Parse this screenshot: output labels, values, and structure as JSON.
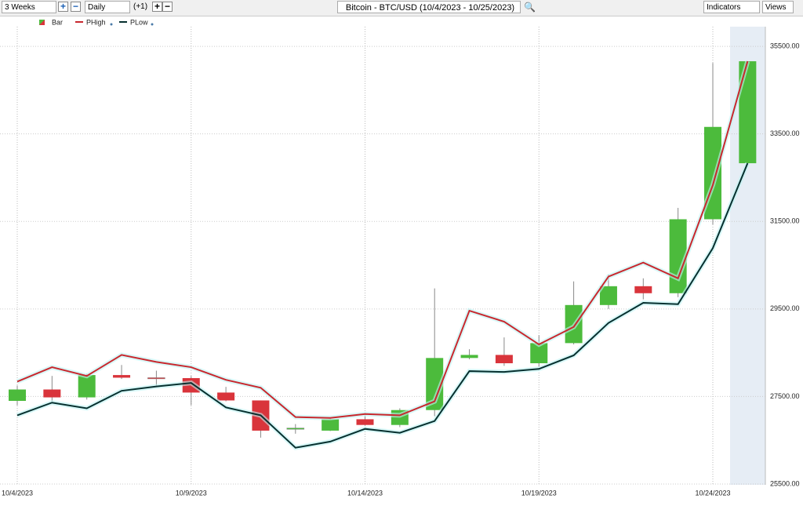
{
  "toolbar": {
    "period": "3 Weeks",
    "interval": "Daily",
    "offset": "(+1)",
    "symbol": "Bitcoin - BTC/USD (10/4/2023 - 10/25/2023)",
    "indicators": "Indicators",
    "views": "Views"
  },
  "chart_data": {
    "type": "candlestick",
    "categories": [
      "10/4/2023",
      null,
      null,
      null,
      null,
      "10/9/2023",
      null,
      null,
      null,
      null,
      "10/14/2023",
      null,
      null,
      null,
      null,
      "10/19/2023",
      null,
      null,
      null,
      null,
      "10/24/2023",
      null
    ],
    "candles": {
      "name": "Bar",
      "up_color": "#4cbb3c",
      "down_color": "#d9343b",
      "open": [
        27400,
        27660,
        27480,
        27990,
        27930,
        27920,
        27590,
        27410,
        26750,
        26720,
        26980,
        26850,
        27190,
        28380,
        28450,
        28260,
        28720,
        29590,
        30020,
        29860,
        31550,
        32830
      ],
      "high": [
        27750,
        27970,
        28020,
        28220,
        28090,
        27970,
        27720,
        27410,
        26870,
        27010,
        27050,
        27230,
        29970,
        28580,
        28850,
        28900,
        30130,
        30290,
        30200,
        31810,
        35120,
        35160
      ],
      "low": [
        27300,
        27390,
        27430,
        27900,
        27750,
        27300,
        27390,
        26560,
        26650,
        26710,
        26830,
        26800,
        27050,
        28350,
        28200,
        28180,
        28690,
        29500,
        29720,
        29770,
        31430,
        32830
      ],
      "close": [
        27660,
        27480,
        27990,
        27930,
        27920,
        27590,
        27410,
        26720,
        26780,
        26980,
        26850,
        27190,
        28380,
        28450,
        28260,
        28720,
        29590,
        30020,
        29860,
        31550,
        33660,
        35160
      ]
    },
    "series": [
      {
        "name": "PHigh",
        "color": "#c8282e",
        "values": [
          27840,
          28170,
          27970,
          28450,
          28290,
          28170,
          27880,
          27700,
          27030,
          27010,
          27100,
          27070,
          27390,
          29460,
          29210,
          28690,
          29090,
          30240,
          30560,
          30200,
          32330,
          35160
        ]
      },
      {
        "name": "PLow",
        "color": "#06302f",
        "values": [
          27070,
          27360,
          27230,
          27630,
          27730,
          27810,
          27250,
          27070,
          26330,
          26470,
          26760,
          26670,
          26940,
          28080,
          28060,
          28130,
          28440,
          29180,
          29640,
          29610,
          30890,
          32830
        ]
      }
    ],
    "ylim": [
      25500,
      35950
    ],
    "yticks": [
      {
        "value": 25500,
        "label": "25500.00"
      },
      {
        "value": 27500,
        "label": "27500.00"
      },
      {
        "value": 29500,
        "label": "29500.00"
      },
      {
        "value": 31500,
        "label": "31500.00"
      },
      {
        "value": 33500,
        "label": "33500.00"
      },
      {
        "value": 35500,
        "label": "35500.00"
      }
    ],
    "grid": true
  }
}
